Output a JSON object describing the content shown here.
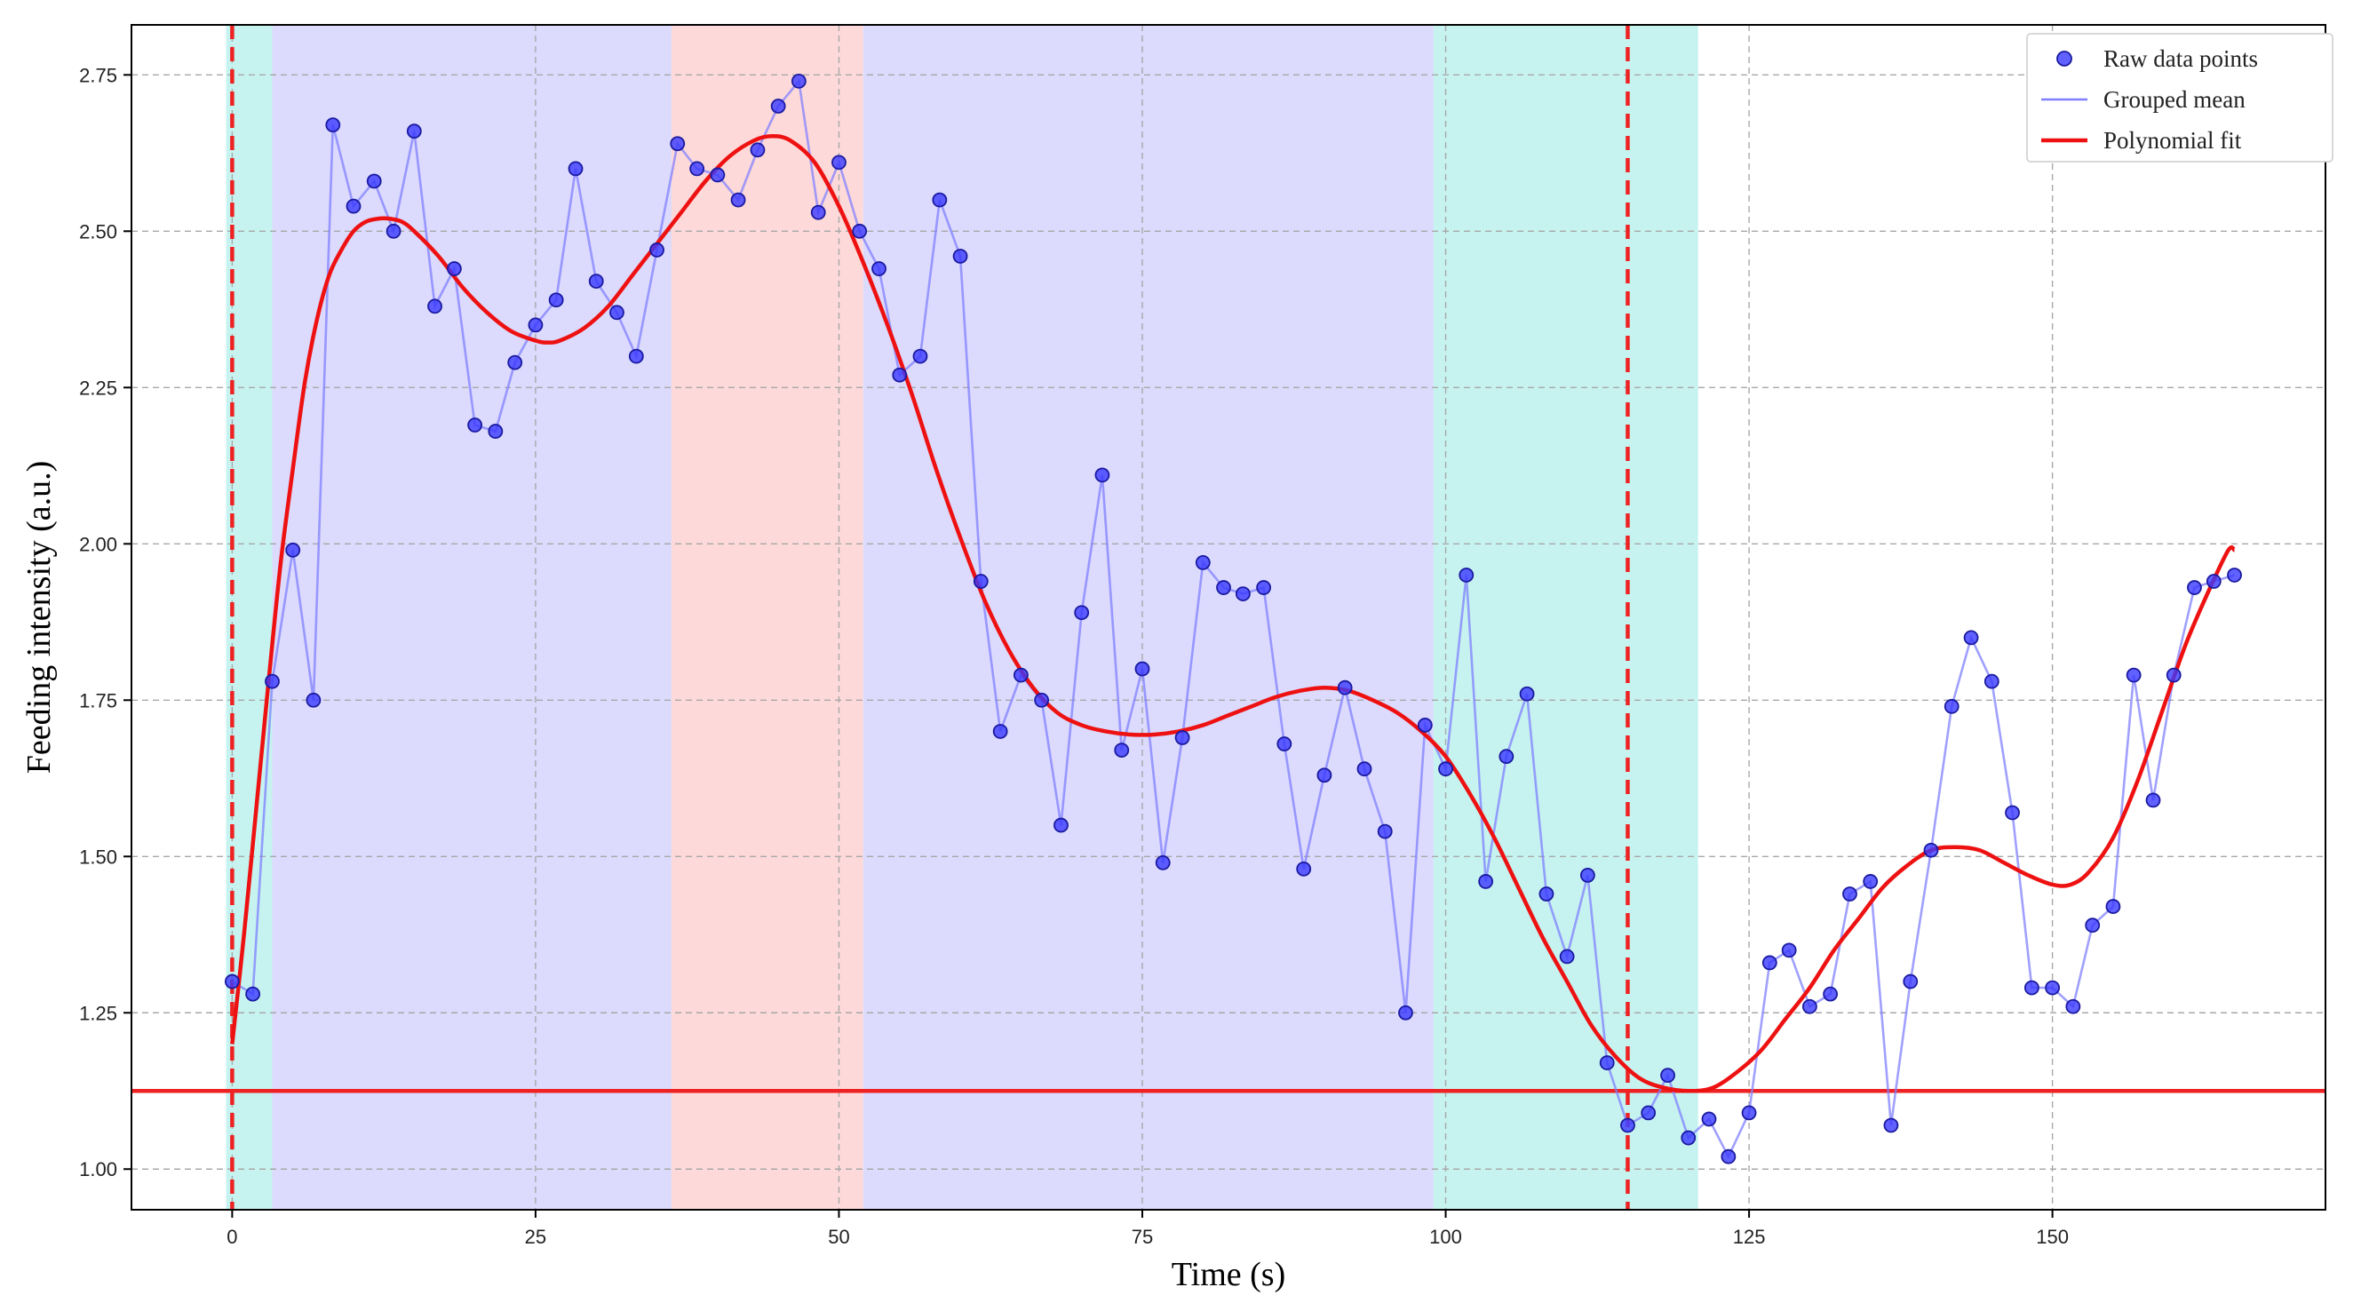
{
  "chart_data": {
    "type": "line",
    "xlabel": "Time (s)",
    "ylabel": "Feeding intensity (a.u.)",
    "xlim": [
      -8.3,
      172.5
    ],
    "ylim": [
      0.935,
      2.83
    ],
    "x_ticks": [
      0,
      25,
      50,
      75,
      100,
      125,
      150
    ],
    "y_ticks": [
      1.0,
      1.25,
      1.5,
      1.75,
      2.0,
      2.25,
      2.5,
      2.75
    ],
    "y_tick_labels": [
      "1.00",
      "1.25",
      "1.50",
      "1.75",
      "2.00",
      "2.25",
      "2.50",
      "2.75"
    ],
    "grid": true,
    "legend_position": "top-right",
    "legend": [
      "Raw data points",
      "Grouped mean",
      "Polynomial fit"
    ],
    "series": [
      {
        "name": "Raw data points",
        "kind": "scatter",
        "color": "#3a3aff",
        "points": [
          [
            0,
            1.3
          ],
          [
            1.7,
            1.28
          ],
          [
            3.3,
            1.78
          ],
          [
            5.0,
            1.99
          ],
          [
            6.7,
            1.75
          ],
          [
            8.3,
            2.67
          ],
          [
            10.0,
            2.54
          ],
          [
            11.7,
            2.58
          ],
          [
            13.3,
            2.5
          ],
          [
            15.0,
            2.66
          ],
          [
            16.7,
            2.38
          ],
          [
            18.3,
            2.44
          ],
          [
            20.0,
            2.19
          ],
          [
            21.7,
            2.18
          ],
          [
            23.3,
            2.29
          ],
          [
            25.0,
            2.35
          ],
          [
            26.7,
            2.39
          ],
          [
            28.3,
            2.6
          ],
          [
            30.0,
            2.42
          ],
          [
            31.7,
            2.37
          ],
          [
            33.3,
            2.3
          ],
          [
            35.0,
            2.47
          ],
          [
            36.7,
            2.64
          ],
          [
            38.3,
            2.6
          ],
          [
            40.0,
            2.59
          ],
          [
            41.7,
            2.55
          ],
          [
            43.3,
            2.63
          ],
          [
            45.0,
            2.7
          ],
          [
            46.7,
            2.74
          ],
          [
            48.3,
            2.53
          ],
          [
            50.0,
            2.61
          ],
          [
            51.7,
            2.5
          ],
          [
            53.3,
            2.44
          ],
          [
            55.0,
            2.27
          ],
          [
            56.7,
            2.3
          ],
          [
            58.3,
            2.55
          ],
          [
            60.0,
            2.46
          ],
          [
            61.7,
            1.94
          ],
          [
            63.3,
            1.7
          ],
          [
            65.0,
            1.79
          ],
          [
            66.7,
            1.75
          ],
          [
            68.3,
            1.55
          ],
          [
            70.0,
            1.89
          ],
          [
            71.7,
            2.11
          ],
          [
            73.3,
            1.67
          ],
          [
            75.0,
            1.8
          ],
          [
            76.7,
            1.49
          ],
          [
            78.3,
            1.69
          ],
          [
            80.0,
            1.97
          ],
          [
            81.7,
            1.93
          ],
          [
            83.3,
            1.92
          ],
          [
            85.0,
            1.93
          ],
          [
            86.7,
            1.68
          ],
          [
            88.3,
            1.48
          ],
          [
            90.0,
            1.63
          ],
          [
            91.7,
            1.77
          ],
          [
            93.3,
            1.64
          ],
          [
            95.0,
            1.54
          ],
          [
            96.7,
            1.25
          ],
          [
            98.3,
            1.71
          ],
          [
            100.0,
            1.64
          ],
          [
            101.7,
            1.95
          ],
          [
            103.3,
            1.46
          ],
          [
            105.0,
            1.66
          ],
          [
            106.7,
            1.76
          ],
          [
            108.3,
            1.44
          ],
          [
            110.0,
            1.34
          ],
          [
            111.7,
            1.47
          ],
          [
            113.3,
            1.17
          ],
          [
            115.0,
            1.07
          ],
          [
            116.7,
            1.09
          ],
          [
            118.3,
            1.15
          ],
          [
            120.0,
            1.05
          ],
          [
            121.7,
            1.08
          ],
          [
            123.3,
            1.02
          ],
          [
            125.0,
            1.09
          ],
          [
            126.7,
            1.33
          ],
          [
            128.3,
            1.35
          ],
          [
            130.0,
            1.26
          ],
          [
            131.7,
            1.28
          ],
          [
            133.3,
            1.44
          ],
          [
            135.0,
            1.46
          ],
          [
            136.7,
            1.07
          ],
          [
            138.3,
            1.3
          ],
          [
            140.0,
            1.51
          ],
          [
            141.7,
            1.74
          ],
          [
            143.3,
            1.85
          ],
          [
            145.0,
            1.78
          ],
          [
            146.7,
            1.57
          ],
          [
            148.3,
            1.29
          ],
          [
            150.0,
            1.29
          ],
          [
            151.7,
            1.26
          ],
          [
            153.3,
            1.39
          ],
          [
            155.0,
            1.42
          ],
          [
            156.7,
            1.79
          ],
          [
            158.3,
            1.59
          ],
          [
            160.0,
            1.79
          ],
          [
            161.7,
            1.93
          ],
          [
            163.3,
            1.94
          ],
          [
            165.0,
            1.95
          ]
        ]
      },
      {
        "name": "Grouped mean",
        "kind": "line",
        "color": "#8080ff",
        "note_same_points_as": "Raw data points"
      },
      {
        "name": "Polynomial fit",
        "kind": "line",
        "color": "#ee1111",
        "points": [
          [
            0,
            1.2
          ],
          [
            1,
            1.38
          ],
          [
            2,
            1.58
          ],
          [
            3,
            1.78
          ],
          [
            4,
            1.97
          ],
          [
            5,
            2.12
          ],
          [
            6,
            2.26
          ],
          [
            7,
            2.36
          ],
          [
            8,
            2.43
          ],
          [
            9,
            2.47
          ],
          [
            10,
            2.5
          ],
          [
            11,
            2.515
          ],
          [
            12,
            2.52
          ],
          [
            13,
            2.52
          ],
          [
            14,
            2.515
          ],
          [
            15,
            2.5
          ],
          [
            17,
            2.46
          ],
          [
            19,
            2.41
          ],
          [
            21,
            2.37
          ],
          [
            23,
            2.34
          ],
          [
            25,
            2.325
          ],
          [
            26,
            2.322
          ],
          [
            27,
            2.325
          ],
          [
            29,
            2.345
          ],
          [
            31,
            2.38
          ],
          [
            33,
            2.43
          ],
          [
            35,
            2.48
          ],
          [
            37,
            2.53
          ],
          [
            39,
            2.58
          ],
          [
            41,
            2.62
          ],
          [
            43,
            2.645
          ],
          [
            44.5,
            2.652
          ],
          [
            46,
            2.645
          ],
          [
            48,
            2.61
          ],
          [
            50,
            2.54
          ],
          [
            52,
            2.45
          ],
          [
            54,
            2.35
          ],
          [
            56,
            2.24
          ],
          [
            58,
            2.12
          ],
          [
            60,
            2.01
          ],
          [
            62,
            1.91
          ],
          [
            64,
            1.83
          ],
          [
            66,
            1.77
          ],
          [
            68,
            1.73
          ],
          [
            70,
            1.71
          ],
          [
            72,
            1.7
          ],
          [
            74,
            1.695
          ],
          [
            76,
            1.695
          ],
          [
            78,
            1.7
          ],
          [
            80,
            1.71
          ],
          [
            82,
            1.725
          ],
          [
            84,
            1.74
          ],
          [
            86,
            1.755
          ],
          [
            88,
            1.765
          ],
          [
            90,
            1.77
          ],
          [
            92,
            1.765
          ],
          [
            94,
            1.75
          ],
          [
            96,
            1.73
          ],
          [
            98,
            1.7
          ],
          [
            100,
            1.66
          ],
          [
            102,
            1.6
          ],
          [
            104,
            1.53
          ],
          [
            106,
            1.45
          ],
          [
            108,
            1.37
          ],
          [
            110,
            1.3
          ],
          [
            112,
            1.23
          ],
          [
            114,
            1.18
          ],
          [
            116,
            1.145
          ],
          [
            118,
            1.13
          ],
          [
            120,
            1.125
          ],
          [
            122,
            1.13
          ],
          [
            124,
            1.155
          ],
          [
            126,
            1.19
          ],
          [
            128,
            1.24
          ],
          [
            130,
            1.29
          ],
          [
            132,
            1.35
          ],
          [
            134,
            1.4
          ],
          [
            136,
            1.45
          ],
          [
            138,
            1.485
          ],
          [
            140,
            1.51
          ],
          [
            142,
            1.515
          ],
          [
            144,
            1.51
          ],
          [
            146,
            1.49
          ],
          [
            148,
            1.47
          ],
          [
            150,
            1.455
          ],
          [
            151.5,
            1.455
          ],
          [
            153,
            1.475
          ],
          [
            155,
            1.53
          ],
          [
            157,
            1.62
          ],
          [
            159,
            1.73
          ],
          [
            161,
            1.84
          ],
          [
            163,
            1.93
          ],
          [
            164.5,
            1.99
          ],
          [
            165,
            1.99
          ]
        ]
      }
    ],
    "reference_lines": {
      "vertical_dashed_x": [
        0,
        115
      ],
      "horizontal_y": 1.125,
      "color": "#ee2222"
    },
    "shaded_regions": [
      {
        "x0": -0.5,
        "x1": 3.3,
        "color": "#c6f3f0"
      },
      {
        "x0": 3.3,
        "x1": 36.2,
        "color": "#dcdafd"
      },
      {
        "x0": 36.2,
        "x1": 52.0,
        "color": "#fdd9d9"
      },
      {
        "x0": 52.0,
        "x1": 99.0,
        "color": "#dcdafd"
      },
      {
        "x0": 99.0,
        "x1": 120.8,
        "color": "#c6f3f0"
      }
    ]
  }
}
